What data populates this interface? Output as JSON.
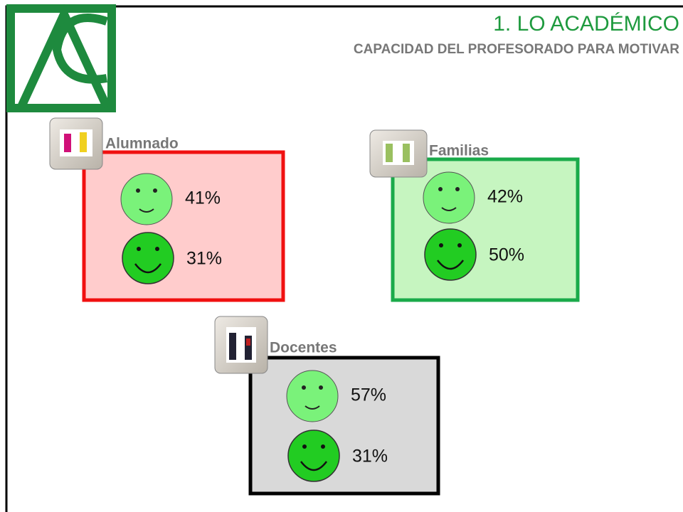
{
  "header": {
    "title": "1.  LO ACADÉMICO",
    "subtitle": "CAPACIDAD DEL PROFESORADO PARA MOTIVAR"
  },
  "groups": [
    {
      "label": "Alumnado",
      "items": [
        "41%",
        "31%"
      ]
    },
    {
      "label": "Familias",
      "items": [
        "42%",
        "50%"
      ]
    },
    {
      "label": "Docentes",
      "items": [
        "57%",
        "31%"
      ]
    }
  ]
}
